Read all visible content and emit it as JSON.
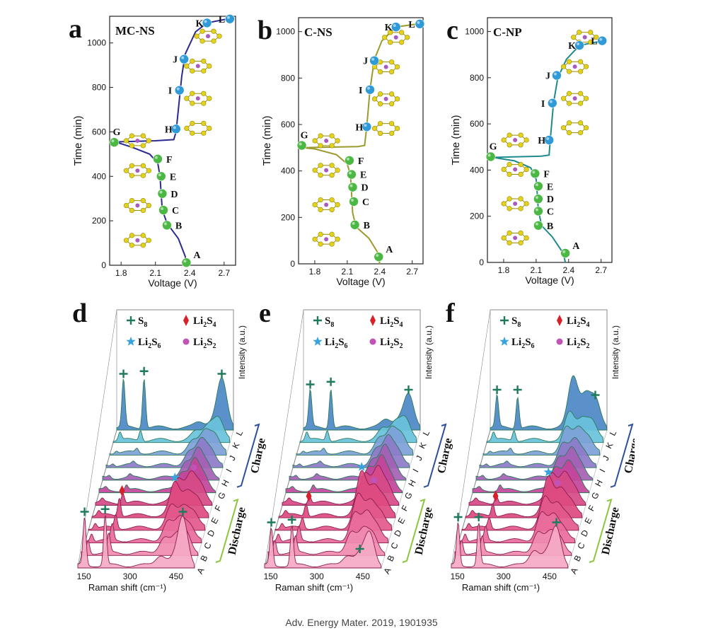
{
  "caption": "Adv. Energy Mater. 2019, 1901935",
  "chart_data": [
    {
      "type": "line",
      "panel": "a",
      "title": "MC-NS",
      "xlabel": "Voltage (V)",
      "ylabel": "Time (min)",
      "xlim": [
        1.7,
        2.8
      ],
      "ylim": [
        0,
        1120
      ],
      "xticks": [
        "1.8",
        "2.1",
        "2.4",
        "2.7"
      ],
      "yticks": [
        "0",
        "200",
        "400",
        "600",
        "800",
        "1000"
      ],
      "line_color": "#2b2a8f",
      "curve": [
        [
          2.37,
          0
        ],
        [
          2.36,
          40
        ],
        [
          2.3,
          120
        ],
        [
          2.2,
          190
        ],
        [
          2.16,
          250
        ],
        [
          2.15,
          320
        ],
        [
          2.14,
          400
        ],
        [
          2.12,
          460
        ],
        [
          2.05,
          500
        ],
        [
          1.9,
          530
        ],
        [
          1.75,
          555
        ],
        [
          2.1,
          560
        ],
        [
          2.26,
          565
        ],
        [
          2.28,
          600
        ],
        [
          2.3,
          700
        ],
        [
          2.33,
          850
        ],
        [
          2.36,
          950
        ],
        [
          2.45,
          1050
        ],
        [
          2.55,
          1090
        ],
        [
          2.75,
          1110
        ]
      ],
      "points": [
        {
          "label": "A",
          "x": 2.37,
          "y": 12,
          "color": "#4cb844"
        },
        {
          "label": "B",
          "x": 2.2,
          "y": 180,
          "color": "#4cb844"
        },
        {
          "label": "C",
          "x": 2.17,
          "y": 248,
          "color": "#4cb844"
        },
        {
          "label": "D",
          "x": 2.16,
          "y": 322,
          "color": "#4cb844"
        },
        {
          "label": "E",
          "x": 2.15,
          "y": 400,
          "color": "#4cb844"
        },
        {
          "label": "F",
          "x": 2.12,
          "y": 478,
          "color": "#4cb844"
        },
        {
          "label": "G",
          "x": 1.74,
          "y": 553,
          "color": "#4cb844"
        },
        {
          "label": "H",
          "x": 2.28,
          "y": 613,
          "color": "#2f9ad8"
        },
        {
          "label": "I",
          "x": 2.31,
          "y": 787,
          "color": "#2f9ad8"
        },
        {
          "label": "J",
          "x": 2.35,
          "y": 927,
          "color": "#2f9ad8"
        },
        {
          "label": "K",
          "x": 2.55,
          "y": 1090,
          "color": "#2f9ad8"
        },
        {
          "label": "L",
          "x": 2.75,
          "y": 1108,
          "color": "#2f9ad8"
        }
      ]
    },
    {
      "type": "line",
      "panel": "b",
      "title": "C-NS",
      "xlabel": "Voltage (V)",
      "ylabel": "Time (min)",
      "xlim": [
        1.65,
        2.8
      ],
      "ylim": [
        0,
        1060
      ],
      "xticks": [
        "1.8",
        "2.1",
        "2.4",
        "2.7"
      ],
      "yticks": [
        "0",
        "200",
        "400",
        "600",
        "800",
        "1000"
      ],
      "line_color": "#9c9a2c",
      "curve": [
        [
          2.4,
          0
        ],
        [
          2.38,
          50
        ],
        [
          2.3,
          110
        ],
        [
          2.18,
          160
        ],
        [
          2.15,
          220
        ],
        [
          2.14,
          300
        ],
        [
          2.13,
          380
        ],
        [
          2.1,
          430
        ],
        [
          2.0,
          470
        ],
        [
          1.8,
          495
        ],
        [
          1.68,
          500
        ],
        [
          2.2,
          505
        ],
        [
          2.26,
          510
        ],
        [
          2.28,
          590
        ],
        [
          2.31,
          750
        ],
        [
          2.35,
          880
        ],
        [
          2.42,
          960
        ],
        [
          2.55,
          1020
        ],
        [
          2.78,
          1035
        ]
      ],
      "points": [
        {
          "label": "A",
          "x": 2.39,
          "y": 30,
          "color": "#4cb844"
        },
        {
          "label": "B",
          "x": 2.17,
          "y": 168,
          "color": "#4cb844"
        },
        {
          "label": "C",
          "x": 2.16,
          "y": 268,
          "color": "#4cb844"
        },
        {
          "label": "D",
          "x": 2.15,
          "y": 330,
          "color": "#4cb844"
        },
        {
          "label": "E",
          "x": 2.14,
          "y": 385,
          "color": "#4cb844"
        },
        {
          "label": "F",
          "x": 2.12,
          "y": 445,
          "color": "#4cb844"
        },
        {
          "label": "G",
          "x": 1.68,
          "y": 510,
          "color": "#4cb844"
        },
        {
          "label": "H",
          "x": 2.28,
          "y": 590,
          "color": "#2f9ad8"
        },
        {
          "label": "I",
          "x": 2.31,
          "y": 750,
          "color": "#2f9ad8"
        },
        {
          "label": "J",
          "x": 2.35,
          "y": 875,
          "color": "#2f9ad8"
        },
        {
          "label": "K",
          "x": 2.55,
          "y": 1020,
          "color": "#2f9ad8"
        },
        {
          "label": "L",
          "x": 2.77,
          "y": 1033,
          "color": "#2f9ad8"
        }
      ]
    },
    {
      "type": "line",
      "panel": "c",
      "title": "C-NP",
      "xlabel": "Voltage (V)",
      "ylabel": "Time (min)",
      "xlim": [
        1.65,
        2.8
      ],
      "ylim": [
        0,
        1060
      ],
      "xticks": [
        "1.8",
        "2.1",
        "2.4",
        "2.7"
      ],
      "yticks": [
        "0",
        "200",
        "400",
        "600",
        "800",
        "1000"
      ],
      "line_color": "#1f8a8c",
      "curve": [
        [
          2.37,
          0
        ],
        [
          2.35,
          40
        ],
        [
          2.25,
          110
        ],
        [
          2.15,
          160
        ],
        [
          2.12,
          230
        ],
        [
          2.11,
          300
        ],
        [
          2.1,
          360
        ],
        [
          2.05,
          410
        ],
        [
          1.9,
          440
        ],
        [
          1.7,
          455
        ],
        [
          2.15,
          460
        ],
        [
          2.22,
          465
        ],
        [
          2.23,
          530
        ],
        [
          2.26,
          690
        ],
        [
          2.3,
          800
        ],
        [
          2.38,
          880
        ],
        [
          2.5,
          940
        ],
        [
          2.72,
          960
        ]
      ],
      "points": [
        {
          "label": "A",
          "x": 2.37,
          "y": 40,
          "color": "#4cb844"
        },
        {
          "label": "B",
          "x": 2.12,
          "y": 160,
          "color": "#4cb844"
        },
        {
          "label": "C",
          "x": 2.12,
          "y": 222,
          "color": "#4cb844"
        },
        {
          "label": "D",
          "x": 2.12,
          "y": 275,
          "color": "#4cb844"
        },
        {
          "label": "E",
          "x": 2.12,
          "y": 330,
          "color": "#4cb844"
        },
        {
          "label": "F",
          "x": 2.09,
          "y": 385,
          "color": "#4cb844"
        },
        {
          "label": "G",
          "x": 1.68,
          "y": 458,
          "color": "#4cb844"
        },
        {
          "label": "H",
          "x": 2.22,
          "y": 530,
          "color": "#2f9ad8"
        },
        {
          "label": "I",
          "x": 2.25,
          "y": 690,
          "color": "#2f9ad8"
        },
        {
          "label": "J",
          "x": 2.29,
          "y": 810,
          "color": "#2f9ad8"
        },
        {
          "label": "K",
          "x": 2.5,
          "y": 940,
          "color": "#2f9ad8"
        },
        {
          "label": "L",
          "x": 2.71,
          "y": 960,
          "color": "#2f9ad8"
        }
      ]
    },
    {
      "type": "area",
      "panel": "d",
      "xlabel": "Raman shift (cm⁻¹)",
      "ylabel": "Intensity (a.u.)",
      "xlim": [
        130,
        510
      ],
      "xticks": [
        "150",
        "300",
        "450"
      ],
      "depth_labels": [
        "A",
        "B",
        "C",
        "D",
        "E",
        "F",
        "G",
        "H",
        "I",
        "J",
        "K",
        "L"
      ],
      "discharge_label": "Discharge",
      "charge_label": "Charge",
      "legend": [
        {
          "label": "S",
          "sub": "8",
          "marker": "cross",
          "color": "#1f7a5a"
        },
        {
          "label": "Li",
          "sub": "2",
          "label2": "S",
          "sub2": "4",
          "marker": "diamond",
          "color": "#d7202a"
        },
        {
          "label": "Li",
          "sub": "2",
          "label2": "S",
          "sub2": "6",
          "marker": "star",
          "color": "#3aa3dc"
        },
        {
          "label": "Li",
          "sub": "2",
          "label2": "S",
          "sub2": "2",
          "marker": "dot",
          "color": "#c052b8"
        }
      ],
      "peaks": [
        {
          "x": 152,
          "amp": [
            0.9,
            0.25,
            0.15,
            0.1,
            0.08,
            0.06,
            0.05,
            0.05,
            0.05,
            0.05,
            0.15,
            0.9
          ]
        },
        {
          "x": 219,
          "amp": [
            0.95,
            0.35,
            0.3,
            0.25,
            0.35,
            0.2,
            0.1,
            0.05,
            0.05,
            0.08,
            0.2,
            0.95
          ]
        },
        {
          "x": 400,
          "amp": [
            0.2,
            0.3,
            0.35,
            0.4,
            0.6,
            0.45,
            0.35,
            0.3,
            0.25,
            0.2,
            0.15,
            0.1
          ]
        },
        {
          "x": 440,
          "amp": [
            0.1,
            0.3,
            0.4,
            0.4,
            0.45,
            0.55,
            0.55,
            0.5,
            0.45,
            0.4,
            0.3,
            0.1
          ]
        },
        {
          "x": 472,
          "amp": [
            0.9,
            0.4,
            0.3,
            0.3,
            0.3,
            0.3,
            0.25,
            0.25,
            0.3,
            0.35,
            0.4,
            0.9
          ]
        }
      ],
      "markers": [
        {
          "slice": 0,
          "x": 152,
          "type": "cross"
        },
        {
          "slice": 0,
          "x": 219,
          "type": "cross"
        },
        {
          "slice": 0,
          "x": 472,
          "type": "cross"
        },
        {
          "slice": 4,
          "x": 228,
          "type": "diamond"
        },
        {
          "slice": 4,
          "x": 400,
          "type": "star"
        },
        {
          "slice": 5,
          "x": 450,
          "type": "dot"
        },
        {
          "slice": 11,
          "x": 152,
          "type": "cross"
        },
        {
          "slice": 11,
          "x": 219,
          "type": "cross"
        },
        {
          "slice": 11,
          "x": 472,
          "type": "cross"
        }
      ]
    },
    {
      "type": "area",
      "panel": "e",
      "xlabel": "Raman shift (cm⁻¹)",
      "ylabel": "Intensity (a.u.)",
      "xlim": [
        130,
        510
      ],
      "xticks": [
        "150",
        "300",
        "450"
      ],
      "depth_labels": [
        "A",
        "B",
        "C",
        "D",
        "E",
        "F",
        "G",
        "H",
        "I",
        "J",
        "K",
        "L"
      ],
      "discharge_label": "Discharge",
      "charge_label": "Charge",
      "legend": [
        {
          "label": "S",
          "sub": "8",
          "marker": "cross",
          "color": "#1f7a5a"
        },
        {
          "label": "Li",
          "sub": "2",
          "label2": "S",
          "sub2": "4",
          "marker": "diamond",
          "color": "#d7202a"
        },
        {
          "label": "Li",
          "sub": "2",
          "label2": "S",
          "sub2": "6",
          "marker": "star",
          "color": "#3aa3dc"
        },
        {
          "label": "Li",
          "sub": "2",
          "label2": "S",
          "sub2": "2",
          "marker": "dot",
          "color": "#c052b8"
        }
      ],
      "peaks": [
        {
          "x": 152,
          "amp": [
            0.7,
            0.25,
            0.15,
            0.1,
            0.08,
            0.06,
            0.05,
            0.05,
            0.05,
            0.05,
            0.15,
            0.7
          ]
        },
        {
          "x": 219,
          "amp": [
            0.75,
            0.3,
            0.25,
            0.2,
            0.25,
            0.15,
            0.1,
            0.05,
            0.05,
            0.08,
            0.2,
            0.75
          ]
        },
        {
          "x": 400,
          "amp": [
            0.2,
            0.4,
            0.5,
            0.6,
            0.8,
            0.55,
            0.45,
            0.35,
            0.3,
            0.25,
            0.2,
            0.15
          ]
        },
        {
          "x": 440,
          "amp": [
            0.2,
            0.4,
            0.5,
            0.5,
            0.55,
            0.65,
            0.6,
            0.55,
            0.5,
            0.45,
            0.35,
            0.15
          ]
        },
        {
          "x": 472,
          "amp": [
            0.6,
            0.35,
            0.3,
            0.3,
            0.3,
            0.3,
            0.25,
            0.25,
            0.3,
            0.35,
            0.4,
            0.6
          ]
        }
      ],
      "markers": [
        {
          "slice": 0,
          "x": 152,
          "type": "cross"
        },
        {
          "slice": 0,
          "x": 219,
          "type": "cross"
        },
        {
          "slice": 0,
          "x": 440,
          "type": "cross"
        },
        {
          "slice": 4,
          "x": 228,
          "type": "diamond"
        },
        {
          "slice": 4,
          "x": 400,
          "type": "star"
        },
        {
          "slice": 4,
          "x": 440,
          "type": "dot"
        },
        {
          "slice": 11,
          "x": 152,
          "type": "cross"
        },
        {
          "slice": 11,
          "x": 219,
          "type": "cross"
        },
        {
          "slice": 11,
          "x": 472,
          "type": "cross"
        }
      ]
    },
    {
      "type": "area",
      "panel": "f",
      "xlabel": "Raman shift (cm⁻¹)",
      "ylabel": "Intensity (a.u.)",
      "xlim": [
        130,
        510
      ],
      "xticks": [
        "150",
        "300",
        "450"
      ],
      "depth_labels": [
        "A",
        "B",
        "C",
        "D",
        "E",
        "F",
        "G",
        "H",
        "I",
        "J",
        "K",
        "L"
      ],
      "discharge_label": "Discharge",
      "charge_label": "Charge",
      "legend": [
        {
          "label": "S",
          "sub": "8",
          "marker": "cross",
          "color": "#1f7a5a"
        },
        {
          "label": "Li",
          "sub": "2",
          "label2": "S",
          "sub2": "4",
          "marker": "diamond",
          "color": "#d7202a"
        },
        {
          "label": "Li",
          "sub": "2",
          "label2": "S",
          "sub2": "6",
          "marker": "star",
          "color": "#3aa3dc"
        },
        {
          "label": "Li",
          "sub": "2",
          "label2": "S",
          "sub2": "2",
          "marker": "dot",
          "color": "#c052b8"
        }
      ],
      "peaks": [
        {
          "x": 152,
          "amp": [
            0.8,
            0.25,
            0.15,
            0.1,
            0.08,
            0.06,
            0.05,
            0.05,
            0.05,
            0.05,
            0.15,
            0.6
          ]
        },
        {
          "x": 219,
          "amp": [
            0.8,
            0.3,
            0.25,
            0.2,
            0.25,
            0.15,
            0.1,
            0.05,
            0.05,
            0.08,
            0.2,
            0.6
          ]
        },
        {
          "x": 400,
          "amp": [
            0.3,
            0.4,
            0.5,
            0.55,
            0.7,
            0.55,
            0.45,
            0.4,
            0.4,
            0.45,
            0.5,
            0.95
          ]
        },
        {
          "x": 440,
          "amp": [
            0.2,
            0.35,
            0.45,
            0.45,
            0.5,
            0.55,
            0.5,
            0.5,
            0.45,
            0.45,
            0.4,
            0.6
          ]
        },
        {
          "x": 472,
          "amp": [
            0.7,
            0.3,
            0.25,
            0.25,
            0.25,
            0.25,
            0.25,
            0.25,
            0.25,
            0.3,
            0.35,
            0.5
          ]
        }
      ],
      "markers": [
        {
          "slice": 0,
          "x": 152,
          "type": "cross"
        },
        {
          "slice": 0,
          "x": 219,
          "type": "cross"
        },
        {
          "slice": 0,
          "x": 472,
          "type": "cross"
        },
        {
          "slice": 4,
          "x": 228,
          "type": "diamond"
        },
        {
          "slice": 4,
          "x": 400,
          "type": "star"
        },
        {
          "slice": 4,
          "x": 430,
          "type": "dot"
        },
        {
          "slice": 11,
          "x": 152,
          "type": "cross"
        },
        {
          "slice": 11,
          "x": 219,
          "type": "cross"
        },
        {
          "slice": 11,
          "x": 472,
          "type": "cross"
        }
      ]
    }
  ]
}
